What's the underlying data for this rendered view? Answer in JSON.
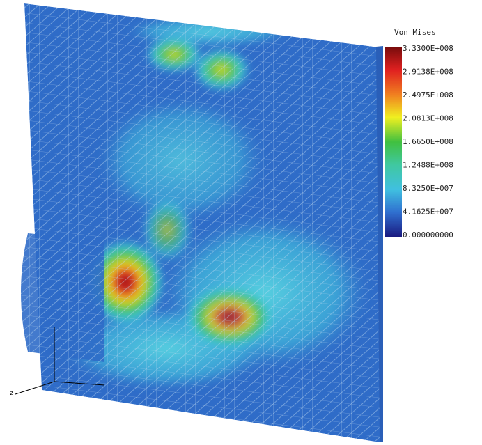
{
  "legend": {
    "title": "Von Mises",
    "labels": [
      "3.3300E+008",
      "2.9138E+008",
      "2.4975E+008",
      "2.0813E+008",
      "1.6650E+008",
      "1.2488E+008",
      "8.3250E+007",
      "4.1625E+007",
      "0.000000000"
    ]
  },
  "axes": {
    "label": "z"
  }
}
